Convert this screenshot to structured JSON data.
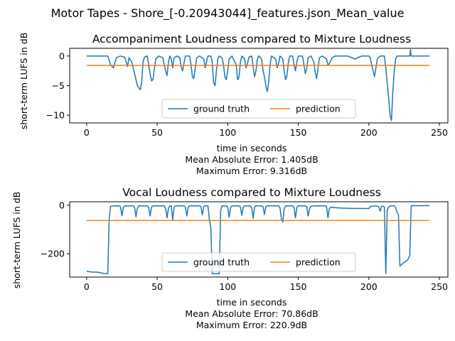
{
  "figure": {
    "suptitle": "Motor Tapes - Shore_[-0.20943044]_features.json_Mean_value"
  },
  "colors": {
    "ground_truth": "#1f77b4",
    "prediction": "#ff7f0e"
  },
  "chart_data": [
    {
      "type": "line",
      "title": "Accompaniment Loudness compared to Mixture Loudness",
      "xlabel": "time in seconds",
      "ylabel": "short-term LUFS in dB",
      "xlim": [
        -12,
        256
      ],
      "ylim": [
        -11.3,
        1.3
      ],
      "xticks": [
        0,
        50,
        100,
        150,
        200,
        250
      ],
      "yticks": [
        0,
        -5,
        -10
      ],
      "grid": false,
      "legend": {
        "placement": "lower center",
        "ncol": 2
      },
      "stats": [
        "Mean Absolute Error: 1.405dB",
        "Maximum Error: 9.316dB"
      ],
      "series": [
        {
          "name": "ground truth",
          "color": "#1f77b4",
          "points": [
            [
              0,
              0
            ],
            [
              15,
              0
            ],
            [
              17,
              -1.5
            ],
            [
              19,
              -2
            ],
            [
              21,
              -0.3
            ],
            [
              24,
              0
            ],
            [
              27,
              -0.2
            ],
            [
              29,
              -1.8
            ],
            [
              30,
              -0.3
            ],
            [
              32,
              -1
            ],
            [
              34,
              -3
            ],
            [
              36,
              -5
            ],
            [
              38,
              -5.7
            ],
            [
              39,
              -4.5
            ],
            [
              40,
              -1
            ],
            [
              41,
              -0.2
            ],
            [
              43,
              0
            ],
            [
              44,
              -1.5
            ],
            [
              45,
              -3
            ],
            [
              46,
              -4.2
            ],
            [
              47,
              -4
            ],
            [
              48,
              -2.2
            ],
            [
              49,
              -0.5
            ],
            [
              51,
              0
            ],
            [
              54,
              -0.3
            ],
            [
              55,
              -1.5
            ],
            [
              56,
              -2.5
            ],
            [
              57,
              -3.3
            ],
            [
              58,
              -1
            ],
            [
              59,
              0
            ],
            [
              60,
              -0.5
            ],
            [
              61,
              -2
            ],
            [
              62,
              -0.3
            ],
            [
              64,
              0
            ],
            [
              66,
              -0.3
            ],
            [
              67,
              -1.8
            ],
            [
              68,
              -2.5
            ],
            [
              69,
              -1.2
            ],
            [
              70,
              0
            ],
            [
              73,
              0
            ],
            [
              74,
              -1.5
            ],
            [
              75,
              -3.5
            ],
            [
              76,
              -3.8
            ],
            [
              77,
              -2
            ],
            [
              78,
              -0.3
            ],
            [
              80,
              0
            ],
            [
              83,
              -0.5
            ],
            [
              84,
              -2
            ],
            [
              85,
              -1
            ],
            [
              86,
              0
            ],
            [
              88,
              0
            ],
            [
              89,
              -1
            ],
            [
              90,
              -4.5
            ],
            [
              91,
              -5
            ],
            [
              92,
              -2.5
            ],
            [
              93,
              -0.5
            ],
            [
              94,
              0
            ],
            [
              96,
              -0.3
            ],
            [
              97,
              -1.5
            ],
            [
              98,
              -3.5
            ],
            [
              99,
              -4
            ],
            [
              100,
              -2.5
            ],
            [
              101,
              -0.5
            ],
            [
              103,
              0
            ],
            [
              106,
              -1.5
            ],
            [
              107,
              -4
            ],
            [
              108,
              -3.5
            ],
            [
              109,
              -1
            ],
            [
              110,
              0
            ],
            [
              112,
              -0.5
            ],
            [
              113,
              -2
            ],
            [
              114,
              -1.3
            ],
            [
              115,
              -0.2
            ],
            [
              117,
              0
            ],
            [
              118,
              -1.8
            ],
            [
              119,
              -3.5
            ],
            [
              120,
              -2.5
            ],
            [
              121,
              -0.5
            ],
            [
              122,
              0
            ],
            [
              124,
              -0.5
            ],
            [
              125,
              -2.5
            ],
            [
              126,
              -3.5
            ],
            [
              127,
              -5
            ],
            [
              128,
              -6
            ],
            [
              129,
              -4.5
            ],
            [
              130,
              -1.5
            ],
            [
              131,
              0
            ],
            [
              134,
              -0.5
            ],
            [
              135,
              -2
            ],
            [
              136,
              -1.3
            ],
            [
              137,
              0
            ],
            [
              139,
              -0.5
            ],
            [
              140,
              -2.5
            ],
            [
              141,
              -4
            ],
            [
              142,
              -3.3
            ],
            [
              143,
              -1
            ],
            [
              144,
              0
            ],
            [
              146,
              0
            ],
            [
              147,
              -1.5
            ],
            [
              148,
              -2.5
            ],
            [
              149,
              -1
            ],
            [
              150,
              0
            ],
            [
              153,
              0
            ],
            [
              154,
              -1.5
            ],
            [
              155,
              -3
            ],
            [
              156,
              -2
            ],
            [
              157,
              -0.3
            ],
            [
              159,
              0
            ],
            [
              161,
              -1
            ],
            [
              162,
              -2.8
            ],
            [
              163,
              -3.8
            ],
            [
              164,
              -2
            ],
            [
              165,
              -0.3
            ],
            [
              167,
              0
            ],
            [
              170,
              -0.5
            ],
            [
              171,
              -1.5
            ],
            [
              172,
              -1.3
            ],
            [
              174,
              -0.3
            ],
            [
              176,
              0
            ],
            [
              185,
              0
            ],
            [
              190,
              -0.5
            ],
            [
              195,
              0
            ],
            [
              200,
              0
            ],
            [
              201,
              -0.3
            ],
            [
              202,
              -1.5
            ],
            [
              203,
              -2.5
            ],
            [
              204,
              -3.5
            ],
            [
              205,
              -2
            ],
            [
              206,
              -0.5
            ],
            [
              208,
              0
            ],
            [
              211,
              0
            ],
            [
              212,
              -2
            ],
            [
              213,
              -4.5
            ],
            [
              214,
              -7
            ],
            [
              215,
              -10
            ],
            [
              216,
              -10.9
            ],
            [
              217,
              -6
            ],
            [
              218,
              -2.5
            ],
            [
              219,
              -0.5
            ],
            [
              220,
              0
            ],
            [
              229,
              0
            ],
            [
              229.5,
              1.1
            ],
            [
              230,
              0
            ],
            [
              243,
              0
            ]
          ]
        },
        {
          "name": "prediction",
          "color": "#ff7f0e",
          "points": [
            [
              0,
              -1.6
            ],
            [
              243,
              -1.6
            ]
          ]
        }
      ]
    },
    {
      "type": "line",
      "title": "Vocal Loudness compared to Mixture Loudness",
      "xlabel": "time in seconds",
      "ylabel": "short-term LUFS in dB",
      "xlim": [
        -12,
        256
      ],
      "ylim": [
        -296,
        14
      ],
      "xticks": [
        0,
        50,
        100,
        150,
        200,
        250
      ],
      "yticks": [
        0,
        -200
      ],
      "grid": false,
      "legend": {
        "placement": "lower center",
        "ncol": 2
      },
      "stats": [
        "Mean Absolute Error: 70.86dB",
        "Maximum Error: 220.9dB"
      ],
      "series": [
        {
          "name": "ground truth",
          "color": "#1f77b4",
          "points": [
            [
              0,
              -272
            ],
            [
              3,
              -275
            ],
            [
              8,
              -276
            ],
            [
              12,
              -281
            ],
            [
              15,
              -282
            ],
            [
              16,
              -55
            ],
            [
              17,
              -5
            ],
            [
              19,
              -3
            ],
            [
              23,
              -3
            ],
            [
              24,
              -6
            ],
            [
              25,
              -44
            ],
            [
              26,
              -10
            ],
            [
              27,
              -3
            ],
            [
              33,
              -3
            ],
            [
              34,
              -8
            ],
            [
              35,
              -48
            ],
            [
              36,
              -12
            ],
            [
              37,
              -3
            ],
            [
              43,
              -3
            ],
            [
              44,
              -10
            ],
            [
              45,
              -45
            ],
            [
              46,
              -8
            ],
            [
              47,
              -3
            ],
            [
              55,
              -3
            ],
            [
              56,
              -15
            ],
            [
              57,
              -52
            ],
            [
              58,
              -12
            ],
            [
              59,
              -3
            ],
            [
              60,
              -3
            ],
            [
              61,
              -60
            ],
            [
              62,
              -8
            ],
            [
              63,
              -3
            ],
            [
              69,
              -3
            ],
            [
              70,
              -8
            ],
            [
              71,
              -45
            ],
            [
              72,
              -8
            ],
            [
              73,
              -3
            ],
            [
              80,
              -3
            ],
            [
              81,
              -6
            ],
            [
              82,
              -40
            ],
            [
              83,
              -6
            ],
            [
              84,
              -3
            ],
            [
              86,
              -3
            ],
            [
              87,
              -60
            ],
            [
              88,
              -90
            ],
            [
              89,
              -282
            ],
            [
              94,
              -282
            ],
            [
              95,
              -20
            ],
            [
              96,
              -3
            ],
            [
              99,
              -3
            ],
            [
              100,
              -8
            ],
            [
              101,
              -50
            ],
            [
              102,
              -10
            ],
            [
              103,
              -3
            ],
            [
              108,
              -3
            ],
            [
              109,
              -8
            ],
            [
              110,
              -42
            ],
            [
              111,
              -8
            ],
            [
              112,
              -3
            ],
            [
              116,
              -3
            ],
            [
              117,
              -10
            ],
            [
              118,
              -55
            ],
            [
              119,
              -8
            ],
            [
              120,
              -3
            ],
            [
              124,
              -3
            ],
            [
              125,
              -6
            ],
            [
              126,
              -38
            ],
            [
              127,
              -6
            ],
            [
              128,
              -3
            ],
            [
              136,
              -3
            ],
            [
              137,
              -10
            ],
            [
              138,
              -55
            ],
            [
              139,
              -70
            ],
            [
              140,
              -15
            ],
            [
              141,
              -3
            ],
            [
              146,
              -3
            ],
            [
              147,
              -10
            ],
            [
              148,
              -52
            ],
            [
              149,
              -8
            ],
            [
              150,
              -3
            ],
            [
              155,
              -3
            ],
            [
              156,
              -6
            ],
            [
              157,
              -45
            ],
            [
              158,
              -15
            ],
            [
              159,
              -5
            ],
            [
              161,
              -3
            ],
            [
              169,
              -3
            ],
            [
              170,
              -5
            ],
            [
              171,
              -52
            ],
            [
              172,
              -15
            ],
            [
              173,
              -8
            ],
            [
              176,
              -10
            ],
            [
              180,
              -12
            ],
            [
              186,
              -13
            ],
            [
              200,
              -14
            ],
            [
              201,
              -5
            ],
            [
              205,
              -3
            ],
            [
              207,
              -6
            ],
            [
              208,
              -25
            ],
            [
              209,
              -5
            ],
            [
              210,
              -4
            ],
            [
              211,
              -7
            ],
            [
              212,
              -282
            ],
            [
              213,
              -20
            ],
            [
              214,
              -8
            ],
            [
              215,
              -3
            ],
            [
              218,
              -3
            ],
            [
              219,
              -10
            ],
            [
              220,
              -30
            ],
            [
              221,
              -40
            ],
            [
              222,
              -251
            ],
            [
              224,
              -240
            ],
            [
              227,
              -228
            ],
            [
              228,
              -220
            ],
            [
              229,
              -205
            ],
            [
              230,
              -2
            ],
            [
              243,
              -2
            ]
          ]
        },
        {
          "name": "prediction",
          "color": "#ff7f0e",
          "points": [
            [
              0,
              -63
            ],
            [
              243,
              -63
            ]
          ]
        }
      ]
    }
  ]
}
